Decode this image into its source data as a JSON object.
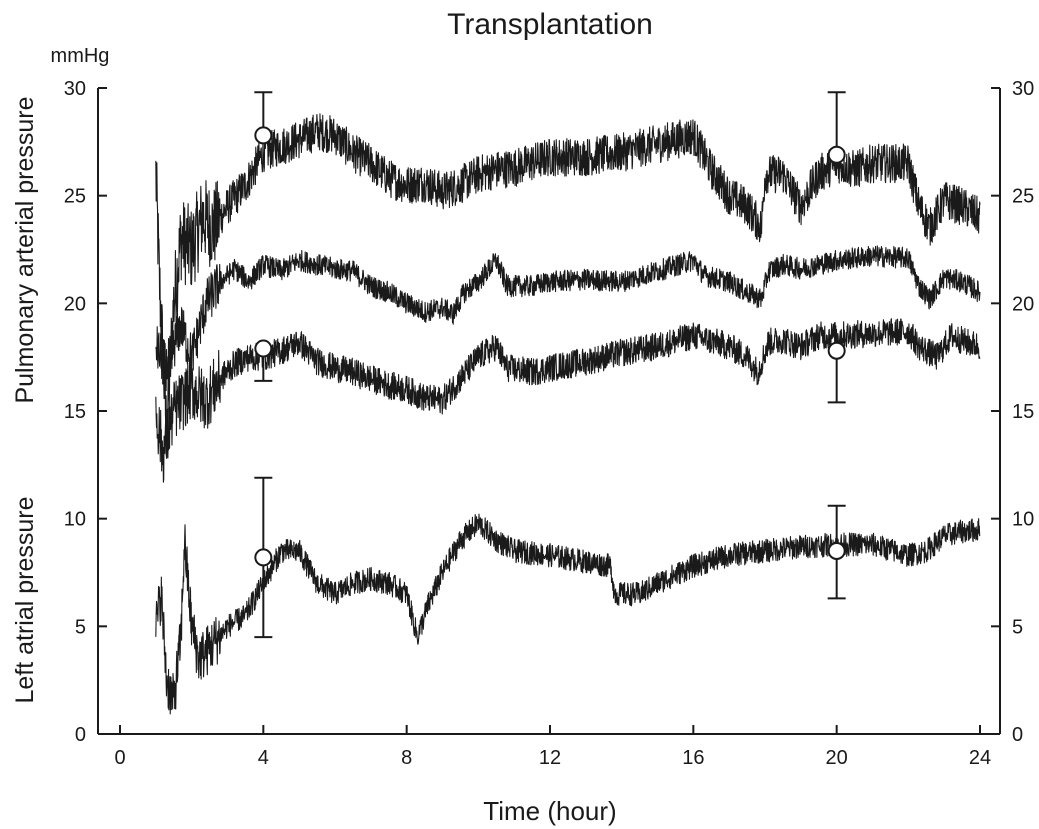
{
  "chart_data": {
    "type": "line",
    "title": "Transplantation",
    "xlabel": "Time (hour)",
    "ylabel_top": "Pulmonary arterial pressure",
    "ylabel_bottom": "Left atrial pressure",
    "yunit": "mmHg",
    "xlim": [
      0,
      24
    ],
    "ylim": [
      0,
      30
    ],
    "xticks": [
      0,
      4,
      8,
      12,
      16,
      20,
      24
    ],
    "yticks": [
      0,
      5,
      10,
      15,
      20,
      25,
      30
    ],
    "grid": false,
    "series": [
      {
        "key": "pap_systolic",
        "noise": 0.9,
        "points": [
          [
            1.0,
            26.0
          ],
          [
            1.1,
            21.0
          ],
          [
            1.3,
            14.0
          ],
          [
            1.5,
            20.0
          ],
          [
            1.7,
            23.0
          ],
          [
            2.0,
            22.5
          ],
          [
            2.3,
            24.0
          ],
          [
            2.6,
            23.5
          ],
          [
            3.0,
            24.5
          ],
          [
            3.5,
            25.5
          ],
          [
            4.0,
            27.0
          ],
          [
            4.5,
            27.3
          ],
          [
            5.0,
            27.6
          ],
          [
            5.5,
            28.0
          ],
          [
            6.0,
            27.8
          ],
          [
            6.5,
            27.0
          ],
          [
            7.0,
            26.5
          ],
          [
            7.5,
            25.8
          ],
          [
            8.0,
            25.5
          ],
          [
            8.5,
            25.6
          ],
          [
            9.0,
            25.2
          ],
          [
            9.5,
            25.5
          ],
          [
            10.0,
            26.0
          ],
          [
            10.5,
            26.2
          ],
          [
            11.0,
            26.3
          ],
          [
            12.0,
            26.8
          ],
          [
            13.0,
            26.8
          ],
          [
            14.0,
            27.0
          ],
          [
            15.0,
            27.4
          ],
          [
            16.0,
            27.8
          ],
          [
            16.5,
            26.2
          ],
          [
            17.0,
            25.0
          ],
          [
            17.5,
            24.5
          ],
          [
            17.9,
            23.5
          ],
          [
            18.0,
            26.0
          ],
          [
            18.5,
            26.0
          ],
          [
            19.0,
            24.5
          ],
          [
            19.5,
            26.0
          ],
          [
            20.0,
            26.5
          ],
          [
            20.5,
            26.2
          ],
          [
            21.0,
            26.5
          ],
          [
            22.0,
            26.5
          ],
          [
            22.3,
            24.5
          ],
          [
            22.6,
            23.5
          ],
          [
            23.0,
            24.8
          ],
          [
            23.5,
            24.5
          ],
          [
            24.0,
            24.0
          ]
        ]
      },
      {
        "key": "pap_mean",
        "noise": 0.5,
        "points": [
          [
            1.0,
            18.0
          ],
          [
            1.3,
            17.0
          ],
          [
            1.7,
            19.0
          ],
          [
            2.0,
            17.5
          ],
          [
            2.4,
            20.0
          ],
          [
            2.8,
            21.0
          ],
          [
            3.2,
            21.6
          ],
          [
            3.6,
            21.0
          ],
          [
            4.0,
            21.8
          ],
          [
            4.5,
            21.5
          ],
          [
            5.0,
            22.0
          ],
          [
            5.5,
            21.8
          ],
          [
            6.0,
            21.6
          ],
          [
            6.5,
            21.5
          ],
          [
            7.0,
            20.8
          ],
          [
            7.5,
            20.5
          ],
          [
            8.0,
            20.0
          ],
          [
            8.5,
            19.6
          ],
          [
            9.0,
            19.8
          ],
          [
            9.3,
            19.5
          ],
          [
            9.6,
            20.5
          ],
          [
            10.0,
            21.0
          ],
          [
            10.5,
            22.0
          ],
          [
            10.8,
            20.8
          ],
          [
            11.5,
            20.8
          ],
          [
            12.0,
            21.0
          ],
          [
            13.0,
            21.1
          ],
          [
            14.0,
            21.0
          ],
          [
            15.0,
            21.5
          ],
          [
            16.0,
            22.0
          ],
          [
            16.3,
            21.3
          ],
          [
            17.0,
            21.0
          ],
          [
            17.5,
            20.5
          ],
          [
            17.9,
            20.2
          ],
          [
            18.1,
            21.5
          ],
          [
            18.5,
            21.8
          ],
          [
            19.0,
            21.6
          ],
          [
            19.5,
            21.8
          ],
          [
            20.0,
            22.0
          ],
          [
            21.0,
            22.2
          ],
          [
            22.0,
            22.1
          ],
          [
            22.3,
            20.8
          ],
          [
            22.6,
            20.2
          ],
          [
            23.0,
            21.2
          ],
          [
            23.5,
            21.0
          ],
          [
            24.0,
            20.5
          ]
        ]
      },
      {
        "key": "pap_diastolic",
        "noise": 0.65,
        "points": [
          [
            1.0,
            15.0
          ],
          [
            1.2,
            13.0
          ],
          [
            1.5,
            15.0
          ],
          [
            2.0,
            16.0
          ],
          [
            2.4,
            15.5
          ],
          [
            2.8,
            16.5
          ],
          [
            3.2,
            17.2
          ],
          [
            3.6,
            17.5
          ],
          [
            4.0,
            17.5
          ],
          [
            4.5,
            17.8
          ],
          [
            5.0,
            18.2
          ],
          [
            5.5,
            17.3
          ],
          [
            6.0,
            17.0
          ],
          [
            6.5,
            16.8
          ],
          [
            7.0,
            16.5
          ],
          [
            7.5,
            16.2
          ],
          [
            8.0,
            16.0
          ],
          [
            8.5,
            15.6
          ],
          [
            9.0,
            15.5
          ],
          [
            9.5,
            16.5
          ],
          [
            10.0,
            17.5
          ],
          [
            10.5,
            18.0
          ],
          [
            10.8,
            17.0
          ],
          [
            11.5,
            16.8
          ],
          [
            12.0,
            17.0
          ],
          [
            13.0,
            17.3
          ],
          [
            14.0,
            17.7
          ],
          [
            15.0,
            18.0
          ],
          [
            16.0,
            18.5
          ],
          [
            17.0,
            18.0
          ],
          [
            17.5,
            17.5
          ],
          [
            17.8,
            16.8
          ],
          [
            18.1,
            18.2
          ],
          [
            18.5,
            18.3
          ],
          [
            19.0,
            18.0
          ],
          [
            19.5,
            18.5
          ],
          [
            20.0,
            18.5
          ],
          [
            21.0,
            18.6
          ],
          [
            22.0,
            18.7
          ],
          [
            22.3,
            18.0
          ],
          [
            22.8,
            17.5
          ],
          [
            23.2,
            18.5
          ],
          [
            23.6,
            18.2
          ],
          [
            24.0,
            18.0
          ]
        ]
      },
      {
        "key": "lap",
        "noise": 0.55,
        "points": [
          [
            1.0,
            5.0
          ],
          [
            1.15,
            6.5
          ],
          [
            1.3,
            2.5
          ],
          [
            1.5,
            1.5
          ],
          [
            1.7,
            4.5
          ],
          [
            1.8,
            9.0
          ],
          [
            2.0,
            5.0
          ],
          [
            2.2,
            3.5
          ],
          [
            2.5,
            4.0
          ],
          [
            3.0,
            5.0
          ],
          [
            3.5,
            5.5
          ],
          [
            4.0,
            7.0
          ],
          [
            4.5,
            8.5
          ],
          [
            5.0,
            8.5
          ],
          [
            5.5,
            7.0
          ],
          [
            6.0,
            6.5
          ],
          [
            6.5,
            7.0
          ],
          [
            7.0,
            7.2
          ],
          [
            7.5,
            7.0
          ],
          [
            8.0,
            6.5
          ],
          [
            8.3,
            4.5
          ],
          [
            8.6,
            6.0
          ],
          [
            9.0,
            7.5
          ],
          [
            9.5,
            9.0
          ],
          [
            10.0,
            9.8
          ],
          [
            10.5,
            9.0
          ],
          [
            11.0,
            8.5
          ],
          [
            12.0,
            8.3
          ],
          [
            13.0,
            8.0
          ],
          [
            13.7,
            7.8
          ],
          [
            13.8,
            6.5
          ],
          [
            14.5,
            6.5
          ],
          [
            15.0,
            7.0
          ],
          [
            16.0,
            7.8
          ],
          [
            17.0,
            8.3
          ],
          [
            18.0,
            8.5
          ],
          [
            19.0,
            8.7
          ],
          [
            20.0,
            8.8
          ],
          [
            21.0,
            8.8
          ],
          [
            22.0,
            8.3
          ],
          [
            22.5,
            8.5
          ],
          [
            23.0,
            9.2
          ],
          [
            23.5,
            9.4
          ],
          [
            24.0,
            9.5
          ]
        ]
      }
    ],
    "markers": [
      {
        "x": 4,
        "y": 27.8,
        "err_high": 29.8,
        "err_low": null
      },
      {
        "x": 4,
        "y": 17.9,
        "err_high": null,
        "err_low": 16.4
      },
      {
        "x": 4,
        "y": 8.2,
        "err_high": 11.9,
        "err_low": 4.5
      },
      {
        "x": 20,
        "y": 26.9,
        "err_high": 29.8,
        "err_low": null
      },
      {
        "x": 20,
        "y": 17.8,
        "err_high": null,
        "err_low": 15.4
      },
      {
        "x": 20,
        "y": 8.5,
        "err_high": 10.6,
        "err_low": 6.3
      }
    ]
  },
  "colors": {
    "trace": "#1a1a1a",
    "axis": "#1a1a1a",
    "marker_fill": "#ffffff"
  }
}
